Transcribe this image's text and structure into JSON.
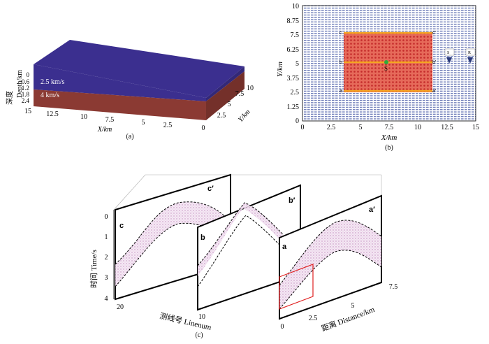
{
  "panel_a": {
    "caption": "(a)",
    "layers": [
      {
        "label": "2.5 km/s",
        "color": "#3b2f8f"
      },
      {
        "label": "4 km/s",
        "color": "#8b3a33"
      }
    ],
    "depth_label": "Depth/km",
    "depth_cn": "深度",
    "depth_ticks": [
      "0",
      "0.6",
      "1.2",
      "1.8",
      "2.4"
    ],
    "x_label": "X/km",
    "x_ticks": [
      "15",
      "12.5",
      "10",
      "7.5",
      "5",
      "2.5",
      "0"
    ],
    "y_label": "Y/km",
    "y_ticks": [
      "0",
      "2.5",
      "5",
      "7.5",
      "10"
    ]
  },
  "panel_b": {
    "caption": "(b)",
    "x_label": "X/km",
    "y_label": "Y/km",
    "x_ticks": [
      "0",
      "2.5",
      "5",
      "7.5",
      "10",
      "12.5",
      "15"
    ],
    "y_ticks": [
      "0",
      "1.25",
      "2.5",
      "3.75",
      "5",
      "6.25",
      "7.5",
      "8.75",
      "10"
    ],
    "line_labels": {
      "a": "a",
      "a_prime": "a′",
      "b": "b",
      "b_prime": "b′",
      "c": "c",
      "c_prime": "c′"
    },
    "source_label": "S",
    "legend": {
      "source": "S",
      "receiver": "R"
    },
    "colors": {
      "receiver": "#3a4fa0",
      "shot": "#e03a3a",
      "line": "#f5a623",
      "source": "#2eaa3a"
    }
  },
  "panel_c": {
    "caption": "(c)",
    "time_label": "时间 Time/s",
    "time_ticks": [
      "0",
      "1",
      "2",
      "3",
      "4"
    ],
    "linenum_label": "测线号 Linenum",
    "linenum_ticks": [
      "20",
      "10",
      "0"
    ],
    "distance_label": "距离 Distance/km",
    "distance_ticks": [
      "2.5",
      "5",
      "7.5"
    ],
    "panel_labels": {
      "c": "c",
      "c_prime": "c′",
      "b": "b",
      "b_prime": "b′",
      "a": "a",
      "a_prime": "a′"
    },
    "colors": {
      "event": "#c58ac0",
      "window": "#e02020"
    }
  }
}
